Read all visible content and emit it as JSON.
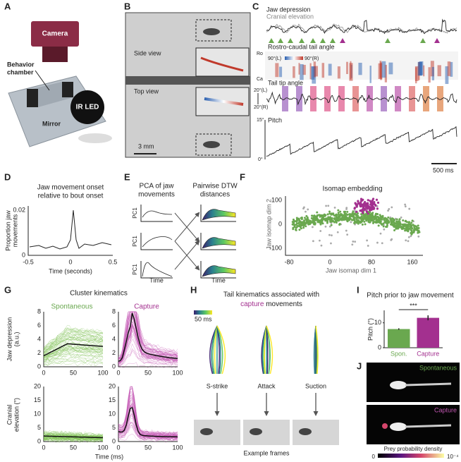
{
  "figure": {
    "A": {
      "label": "A",
      "camera": "Camera",
      "chamber": [
        "Behavior",
        "chamber"
      ],
      "ir_led": "IR LED",
      "mirror": "Mirror"
    },
    "B": {
      "label": "B",
      "side": "Side view",
      "top": "Top view",
      "scale": "3 mm"
    },
    "C": {
      "label": "C",
      "jaw": "Jaw depression",
      "cranial": "Cranial elevation",
      "rostro": "Rostro-caudal tail angle",
      "ro": "Ro",
      "ca": "Ca",
      "cb_left": "90°(L)",
      "cb_right": "90°(R)",
      "tail_tip": "Tail tip angle",
      "tt_top": "20°(L)",
      "tt_bottom": "20°(R)",
      "pitch": "Pitch",
      "p_top": "15°",
      "p_bottom": "0°",
      "scale": "500 ms"
    },
    "D": {
      "label": "D",
      "title": [
        "Jaw movement onset",
        "relative to bout onset"
      ],
      "ylabel": [
        "Proportion jaw",
        "movements"
      ],
      "xlabel": "Time (seconds)",
      "yticks": [
        "0.02",
        "0"
      ],
      "xticks": [
        "-0.5",
        "0",
        "0.5"
      ]
    },
    "E": {
      "label": "E",
      "left_title": [
        "PCA of jaw",
        "movements"
      ],
      "right_title": [
        "Pairwise DTW",
        "distances"
      ],
      "pc": "PC1",
      "time": "Time"
    },
    "F": {
      "label": "F",
      "title": "Isomap embedding",
      "ylabel": "Jaw isomap dim 2",
      "xlabel": "Jaw isomap dim 1",
      "yticks": [
        "100",
        "0",
        "-100"
      ],
      "xticks": [
        "-80",
        "0",
        "80",
        "160"
      ]
    },
    "G": {
      "label": "G",
      "title": "Cluster kinematics",
      "spont": "Spontaneous",
      "capture": "Capture",
      "ylabel_top": [
        "Jaw depression",
        "(a.u.)"
      ],
      "ylabel_bottom": [
        "Cranial",
        "elevation (°)"
      ],
      "yticks_top": [
        "0",
        "2",
        "4",
        "6",
        "8"
      ],
      "yticks_bottom": [
        "0",
        "5",
        "10",
        "15",
        "20"
      ],
      "xticks": [
        "0",
        "50",
        "100"
      ],
      "xlabel": "Time (ms)"
    },
    "H": {
      "label": "H",
      "title": "Tail kinematics associated with",
      "title_capture": "capture",
      "title_rest": "movements",
      "colorbar": "50 ms",
      "types": [
        "S-strike",
        "Attack",
        "Suction"
      ],
      "frames": "Example frames"
    },
    "I": {
      "label": "I",
      "title": "Pitch prior to jaw movement",
      "sig": "***"
    },
    "J": {
      "label": "J",
      "spont": "Spontaneous",
      "capture": "Capture",
      "cbar": "Prey probability density",
      "cmin": "0",
      "cmax": "10⁻⁴"
    }
  },
  "chart_data": {
    "type": "bar",
    "ylabel": "Pitch (°)",
    "categories": [
      "Spon.",
      "Capture"
    ],
    "values": [
      7.5,
      12
    ],
    "errors": [
      0.3,
      1
    ],
    "colors": [
      "#6aa84f",
      "#a3308f"
    ],
    "ylim": [
      0,
      15
    ],
    "yticks": [
      0,
      10
    ]
  }
}
